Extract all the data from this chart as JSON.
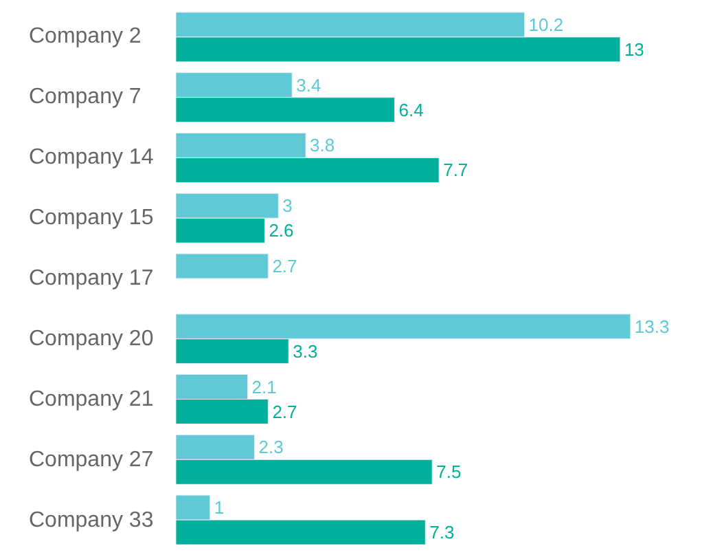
{
  "chart_data": {
    "type": "bar",
    "orientation": "horizontal",
    "categories": [
      "Company 2",
      "Company 7",
      "Company 14",
      "Company 15",
      "Company 17",
      "Company 20",
      "Company 21",
      "Company 27",
      "Company 33"
    ],
    "series": [
      {
        "color": "#5fc9d6",
        "values": [
          10.2,
          3.4,
          3.8,
          3,
          2.7,
          13.3,
          2.1,
          2.3,
          1
        ]
      },
      {
        "color": "#00b09b",
        "values": [
          13,
          6.4,
          7.7,
          2.6,
          null,
          3.3,
          2.7,
          7.5,
          7.3
        ]
      }
    ],
    "data_labels": true
  }
}
